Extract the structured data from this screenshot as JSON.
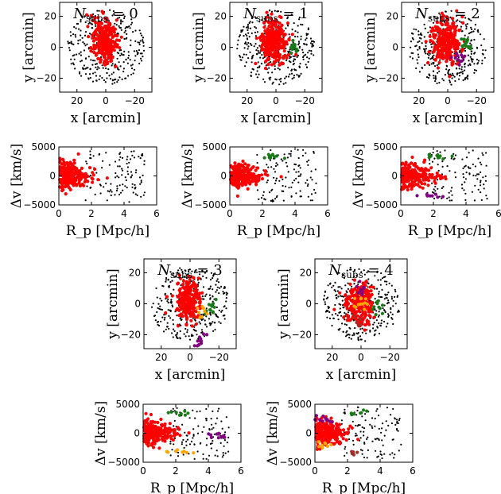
{
  "chart_data": [
    {
      "type": "scatter",
      "panel": "sky",
      "title": "N_subs = 0",
      "title_parts": {
        "sym": "N",
        "sub": "subs",
        "rest": " = 0"
      },
      "xlabel": "x [arcmin]",
      "ylabel": "y [arcmin]",
      "xlim": [
        32,
        -32
      ],
      "ylim": [
        -29,
        29
      ],
      "xticks": [
        20,
        0,
        -20
      ],
      "yticks": [
        20,
        0,
        -20
      ],
      "xtick_labels": [
        "20",
        "0",
        "−20"
      ],
      "ytick_labels": [
        "20",
        "0",
        "−20"
      ],
      "grid": false,
      "series": [
        {
          "color": "#000000",
          "count": 320,
          "spread": "field"
        },
        {
          "color": "#ff0000",
          "count": 260,
          "spread": "cluster",
          "center": [
            1,
            4
          ]
        }
      ]
    },
    {
      "type": "scatter",
      "panel": "sky",
      "title": "N_subs = 1",
      "title_parts": {
        "sym": "N",
        "sub": "subs",
        "rest": " = 1"
      },
      "xlabel": "x [arcmin]",
      "ylabel": "y [arcmin]",
      "xlim": [
        32,
        -32
      ],
      "ylim": [
        -29,
        29
      ],
      "xticks": [
        20,
        0,
        -20
      ],
      "yticks": [
        20,
        0,
        -20
      ],
      "xtick_labels": [
        "20",
        "0",
        "−20"
      ],
      "ytick_labels": [
        "20",
        "0",
        "−20"
      ],
      "grid": false,
      "series": [
        {
          "color": "#000000",
          "count": 320,
          "spread": "field"
        },
        {
          "color": "#ff0000",
          "count": 260,
          "spread": "cluster",
          "center": [
            1,
            4
          ]
        },
        {
          "color": "#1a7a1a",
          "count": 14,
          "center": [
            -12,
            0
          ],
          "marker": "triangle"
        }
      ]
    },
    {
      "type": "scatter",
      "panel": "sky",
      "title": "N_subs = 2",
      "title_parts": {
        "sym": "N",
        "sub": "subs",
        "rest": " = 2"
      },
      "xlabel": "x [arcmin]",
      "ylabel": "y [arcmin]",
      "xlim": [
        32,
        -32
      ],
      "ylim": [
        -29,
        29
      ],
      "xticks": [
        20,
        0,
        -20
      ],
      "yticks": [
        20,
        0,
        -20
      ],
      "xtick_labels": [
        "20",
        "0",
        "−20"
      ],
      "ytick_labels": [
        "20",
        "0",
        "−20"
      ],
      "grid": false,
      "series": [
        {
          "color": "#000000",
          "count": 320,
          "spread": "field"
        },
        {
          "color": "#ff0000",
          "count": 260,
          "spread": "cluster",
          "center": [
            1,
            4
          ]
        },
        {
          "color": "#1a7a1a",
          "count": 14,
          "center": [
            -13,
            2
          ],
          "marker": "triangle"
        },
        {
          "color": "#800080",
          "count": 12,
          "center": [
            -8,
            -7
          ],
          "marker": "square"
        }
      ]
    },
    {
      "type": "scatter",
      "panel": "sky",
      "title": "N_subs = 3",
      "title_parts": {
        "sym": "N",
        "sub": "subs",
        "rest": " = 3"
      },
      "xlabel": "x [arcmin]",
      "ylabel": "y [arcmin]",
      "xlim": [
        32,
        -32
      ],
      "ylim": [
        -29,
        29
      ],
      "xticks": [
        20,
        0,
        -20
      ],
      "yticks": [
        20,
        0,
        -20
      ],
      "xtick_labels": [
        "20",
        "0",
        "−20"
      ],
      "ytick_labels": [
        "20",
        "0",
        "−20"
      ],
      "grid": false,
      "series": [
        {
          "color": "#000000",
          "count": 320,
          "spread": "field"
        },
        {
          "color": "#ff0000",
          "count": 240,
          "spread": "cluster",
          "center": [
            1,
            2
          ]
        },
        {
          "color": "#1a7a1a",
          "count": 12,
          "center": [
            -14,
            -3
          ],
          "marker": "triangle"
        },
        {
          "color": "#800080",
          "count": 12,
          "center": [
            -6,
            -24
          ],
          "marker": "square"
        },
        {
          "color": "#ffa500",
          "count": 8,
          "center": [
            -8,
            -8
          ],
          "marker": "diamond"
        }
      ]
    },
    {
      "type": "scatter",
      "panel": "sky",
      "title": "N_subs = 4",
      "title_parts": {
        "sym": "N",
        "sub": "subs",
        "rest": " = 4"
      },
      "xlabel": "x [arcmin]",
      "ylabel": "y [arcmin]",
      "xlim": [
        32,
        -32
      ],
      "ylim": [
        -29,
        29
      ],
      "xticks": [
        20,
        0,
        -20
      ],
      "yticks": [
        20,
        0,
        -20
      ],
      "xtick_labels": [
        "20",
        "0",
        "−20"
      ],
      "ytick_labels": [
        "20",
        "0",
        "−20"
      ],
      "grid": false,
      "series": [
        {
          "color": "#000000",
          "count": 320,
          "spread": "field"
        },
        {
          "color": "#ff0000",
          "count": 230,
          "spread": "cluster",
          "center": [
            1,
            0
          ]
        },
        {
          "color": "#1a7a1a",
          "count": 10,
          "center": [
            -13,
            -2
          ],
          "marker": "triangle"
        },
        {
          "color": "#800080",
          "count": 10,
          "center": [
            0,
            10
          ],
          "marker": "square"
        },
        {
          "color": "#ffa500",
          "count": 12,
          "center": [
            0,
            0
          ],
          "marker": "diamond"
        },
        {
          "color": "#a52a2a",
          "count": 6,
          "center": [
            2,
            -10
          ],
          "marker": "circle"
        }
      ]
    },
    {
      "type": "scatter",
      "panel": "phase",
      "xlabel": "R_p [Mpc/h]",
      "ylabel": "Δv [km/s]",
      "xlim": [
        0,
        6
      ],
      "ylim": [
        -5000,
        5000
      ],
      "xticks": [
        0,
        2,
        4,
        6
      ],
      "yticks": [
        5000,
        0,
        -5000
      ],
      "xtick_labels": [
        "0",
        "2",
        "4",
        "6"
      ],
      "ytick_labels": [
        "5000",
        "0",
        "−5000"
      ],
      "grid": false,
      "series": [
        {
          "color": "#000000",
          "count": 110,
          "spread": "field"
        },
        {
          "color": "#ff0000",
          "count": 230,
          "spread": "cluster"
        }
      ]
    },
    {
      "type": "scatter",
      "panel": "phase",
      "xlabel": "R_p [Mpc/h]",
      "ylabel": "Δv [km/s]",
      "xlim": [
        0,
        6
      ],
      "ylim": [
        -5000,
        5000
      ],
      "xticks": [
        0,
        2,
        4,
        6
      ],
      "yticks": [
        5000,
        0,
        -5000
      ],
      "xtick_labels": [
        "0",
        "2",
        "4",
        "6"
      ],
      "ytick_labels": [
        "5000",
        "0",
        "−5000"
      ],
      "grid": false,
      "series": [
        {
          "color": "#000000",
          "count": 110,
          "spread": "field"
        },
        {
          "color": "#ff0000",
          "count": 230,
          "spread": "cluster"
        },
        {
          "color": "#1a7a1a",
          "count": 10,
          "center": [
            2.6,
            3400
          ],
          "marker": "triangle"
        }
      ]
    },
    {
      "type": "scatter",
      "panel": "phase",
      "xlabel": "R_p [Mpc/h]",
      "ylabel": "Δv [km/s]",
      "xlim": [
        0,
        6
      ],
      "ylim": [
        -5000,
        5000
      ],
      "xticks": [
        0,
        2,
        4,
        6
      ],
      "yticks": [
        5000,
        0,
        -5000
      ],
      "xtick_labels": [
        "0",
        "2",
        "4",
        "6"
      ],
      "ytick_labels": [
        "5000",
        "0",
        "−5000"
      ],
      "grid": false,
      "series": [
        {
          "color": "#000000",
          "count": 110,
          "spread": "field"
        },
        {
          "color": "#ff0000",
          "count": 230,
          "spread": "cluster"
        },
        {
          "color": "#1a7a1a",
          "count": 10,
          "center": [
            2.5,
            3300
          ],
          "marker": "triangle"
        },
        {
          "color": "#800080",
          "count": 8,
          "center": [
            2.1,
            -3300
          ],
          "marker": "square"
        }
      ]
    },
    {
      "type": "scatter",
      "panel": "phase",
      "xlabel": "R_p [Mpc/h]",
      "ylabel": "Δv [km/s]",
      "xlim": [
        0,
        6
      ],
      "ylim": [
        -5000,
        5000
      ],
      "xticks": [
        0,
        2,
        4,
        6
      ],
      "yticks": [
        5000,
        0,
        -5000
      ],
      "xtick_labels": [
        "0",
        "2",
        "4",
        "6"
      ],
      "ytick_labels": [
        "5000",
        "0",
        "−5000"
      ],
      "grid": false,
      "series": [
        {
          "color": "#000000",
          "count": 110,
          "spread": "field"
        },
        {
          "color": "#ff0000",
          "count": 220,
          "spread": "cluster"
        },
        {
          "color": "#1a7a1a",
          "count": 8,
          "center": [
            2.4,
            3500
          ],
          "marker": "triangle"
        },
        {
          "color": "#800080",
          "count": 10,
          "center": [
            4.8,
            -300
          ],
          "marker": "square"
        },
        {
          "color": "#ffa500",
          "count": 8,
          "center": [
            2.3,
            -3200
          ],
          "marker": "diamond"
        }
      ]
    },
    {
      "type": "scatter",
      "panel": "phase",
      "xlabel": "R_p [Mpc/h]",
      "ylabel": "Δv [km/s]",
      "xlim": [
        0,
        6
      ],
      "ylim": [
        -5000,
        5000
      ],
      "xticks": [
        0,
        2,
        4,
        6
      ],
      "yticks": [
        5000,
        0,
        -5000
      ],
      "xtick_labels": [
        "0",
        "2",
        "4",
        "6"
      ],
      "ytick_labels": [
        "5000",
        "0",
        "−5000"
      ],
      "grid": false,
      "series": [
        {
          "color": "#000000",
          "count": 110,
          "spread": "field"
        },
        {
          "color": "#ff0000",
          "count": 220,
          "spread": "cluster"
        },
        {
          "color": "#1a7a1a",
          "count": 8,
          "center": [
            2.5,
            3500
          ],
          "marker": "triangle"
        },
        {
          "color": "#800080",
          "count": 10,
          "center": [
            0.6,
            2500
          ],
          "marker": "square"
        },
        {
          "color": "#ffa500",
          "count": 8,
          "center": [
            0.3,
            -2200
          ],
          "marker": "diamond"
        },
        {
          "color": "#a52a2a",
          "count": 5,
          "center": [
            2.3,
            -3300
          ],
          "marker": "circle"
        }
      ]
    }
  ]
}
